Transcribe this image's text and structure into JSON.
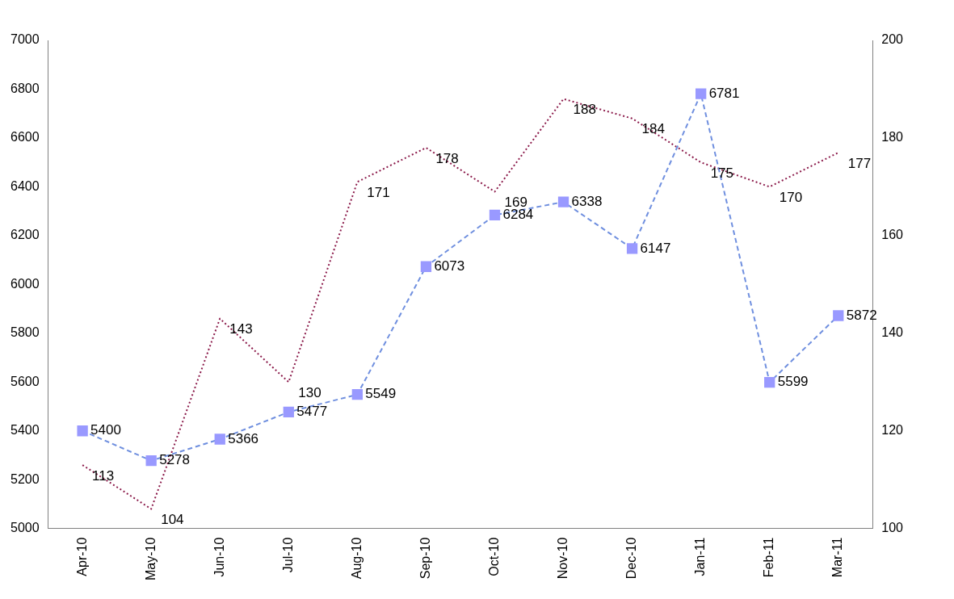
{
  "chart_data": {
    "type": "line",
    "categories": [
      "Apr-10",
      "May-10",
      "Jun-10",
      "Jul-10",
      "Aug-10",
      "Sep-10",
      "Oct-10",
      "Nov-10",
      "Dec-10",
      "Jan-11",
      "Feb-11",
      "Mar-11"
    ],
    "series": [
      {
        "color": "#6f8fdf",
        "marker": "square",
        "line_style": "dashed",
        "values": [
          5400,
          5278,
          5366,
          5477,
          5549,
          6073,
          6284,
          6338,
          6147,
          6781,
          5599,
          5872
        ]
      },
      {
        "color": "#8b1a4a",
        "axis": "y2",
        "marker": "none",
        "line_style": "dotted",
        "values": [
          113,
          104,
          143,
          130,
          171,
          178,
          169,
          188,
          184,
          175,
          170,
          177
        ]
      }
    ],
    "ylim": [
      5000,
      7000
    ],
    "yticks": [
      5000,
      5200,
      5400,
      5600,
      5800,
      6000,
      6200,
      6400,
      6600,
      6800,
      7000
    ],
    "y2lim": [
      100,
      200
    ],
    "y2ticks": [
      100,
      120,
      140,
      160,
      180,
      200
    ],
    "grid": false,
    "data_labels": true
  }
}
